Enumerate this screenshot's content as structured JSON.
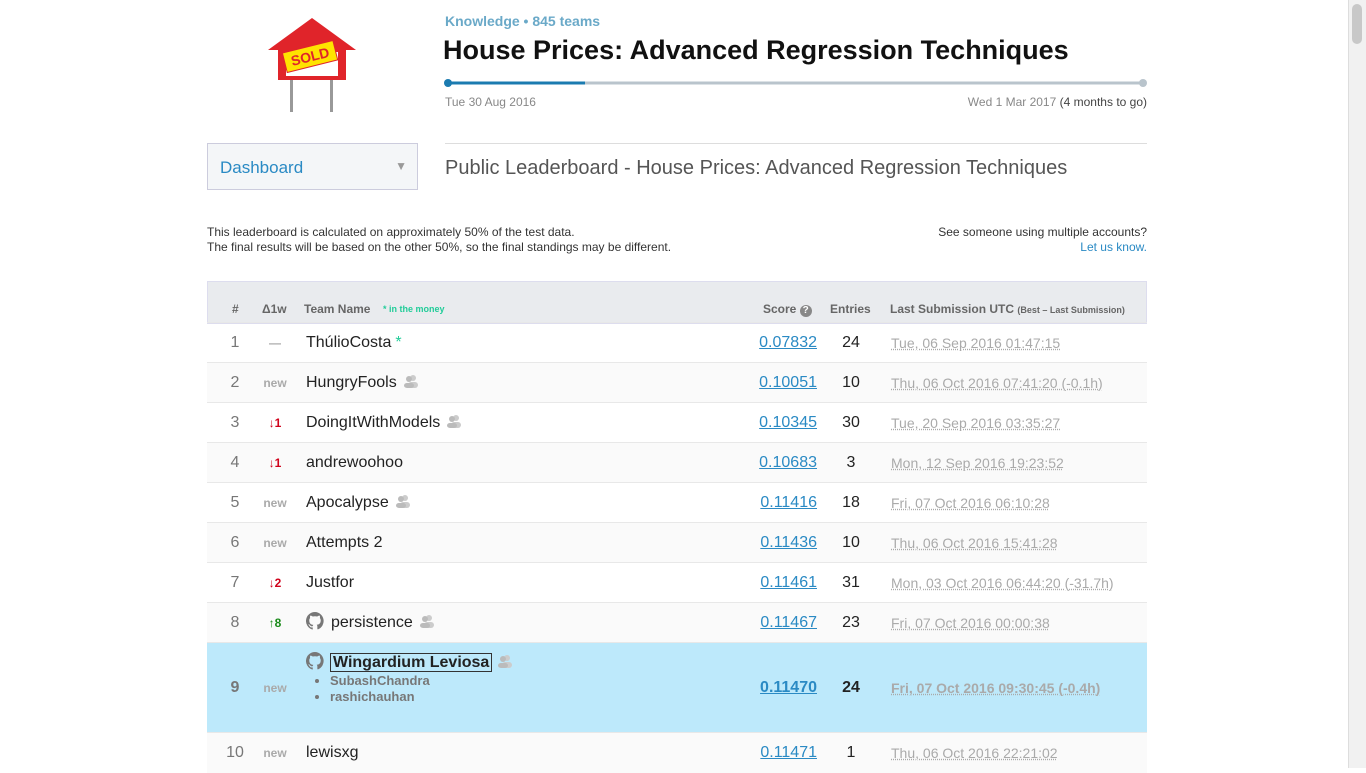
{
  "header": {
    "logo_text": "SOLD",
    "category": "Knowledge • 845 teams",
    "title": "House Prices: Advanced Regression Techniques",
    "start_date": "Tue 30 Aug 2016",
    "end_date": "Wed 1 Mar 2017",
    "remaining": "(4 months to go)"
  },
  "nav": {
    "dropdown": "Dashboard",
    "page_title": "Public Leaderboard - House Prices: Advanced Regression Techniques"
  },
  "notes": {
    "left": [
      "This leaderboard is calculated on approximately 50% of the test data.",
      "The final results will be based on the other 50%, so the final standings may be different."
    ],
    "right": "See someone using multiple accounts?",
    "link": "Let us know."
  },
  "table": {
    "headers": {
      "rank": "#",
      "change": "Δ1w",
      "team": "Team Name",
      "money": "* in the money",
      "score": "Score",
      "entries": "Entries",
      "last": "Last Submission UTC",
      "last_note": "(Best – Last Submission)"
    },
    "rows": [
      {
        "rank": "1",
        "change": "—",
        "team": "ThúlioCosta",
        "marker": "*",
        "score": "0.07832",
        "entries": "24",
        "last": "Tue, 06 Sep 2016 01:47:15",
        "github": false,
        "group": false
      },
      {
        "rank": "2",
        "change": "new",
        "team": "HungryFools",
        "score": "0.10051",
        "entries": "10",
        "last": "Thu, 06 Oct 2016 07:41:20 (-0.1h)",
        "github": false,
        "group": true
      },
      {
        "rank": "3",
        "change": "↓1",
        "team": "DoingItWithModels",
        "score": "0.10345",
        "entries": "30",
        "last": "Tue, 20 Sep 2016 03:35:27",
        "github": false,
        "group": true
      },
      {
        "rank": "4",
        "change": "↓1",
        "team": "andrewoohoo",
        "score": "0.10683",
        "entries": "3",
        "last": "Mon, 12 Sep 2016 19:23:52",
        "github": false,
        "group": false
      },
      {
        "rank": "5",
        "change": "new",
        "team": "Apocalypse",
        "score": "0.11416",
        "entries": "18",
        "last": "Fri, 07 Oct 2016 06:10:28",
        "github": false,
        "group": true
      },
      {
        "rank": "6",
        "change": "new",
        "team": "Attempts 2",
        "score": "0.11436",
        "entries": "10",
        "last": "Thu, 06 Oct 2016 15:41:28",
        "github": false,
        "group": false
      },
      {
        "rank": "7",
        "change": "↓2",
        "team": "Justfor",
        "score": "0.11461",
        "entries": "31",
        "last": "Mon, 03 Oct 2016 06:44:20 (-31.7h)",
        "github": false,
        "group": false
      },
      {
        "rank": "8",
        "change": "↑8",
        "team": "persistence",
        "score": "0.11467",
        "entries": "23",
        "last": "Fri, 07 Oct 2016 00:00:38",
        "github": true,
        "group": true
      },
      {
        "rank": "9",
        "change": "new",
        "team": "Wingardium Leviosa",
        "members": [
          "SubashChandra",
          "rashichauhan"
        ],
        "score": "0.11470",
        "entries": "24",
        "last": "Fri, 07 Oct 2016 09:30:45 (-0.4h)",
        "github": true,
        "group": true,
        "highlight": true
      },
      {
        "rank": "10",
        "change": "new",
        "team": "lewisxg",
        "score": "0.11471",
        "entries": "1",
        "last": "Thu, 06 Oct 2016 22:21:02",
        "github": false,
        "group": false
      }
    ]
  }
}
